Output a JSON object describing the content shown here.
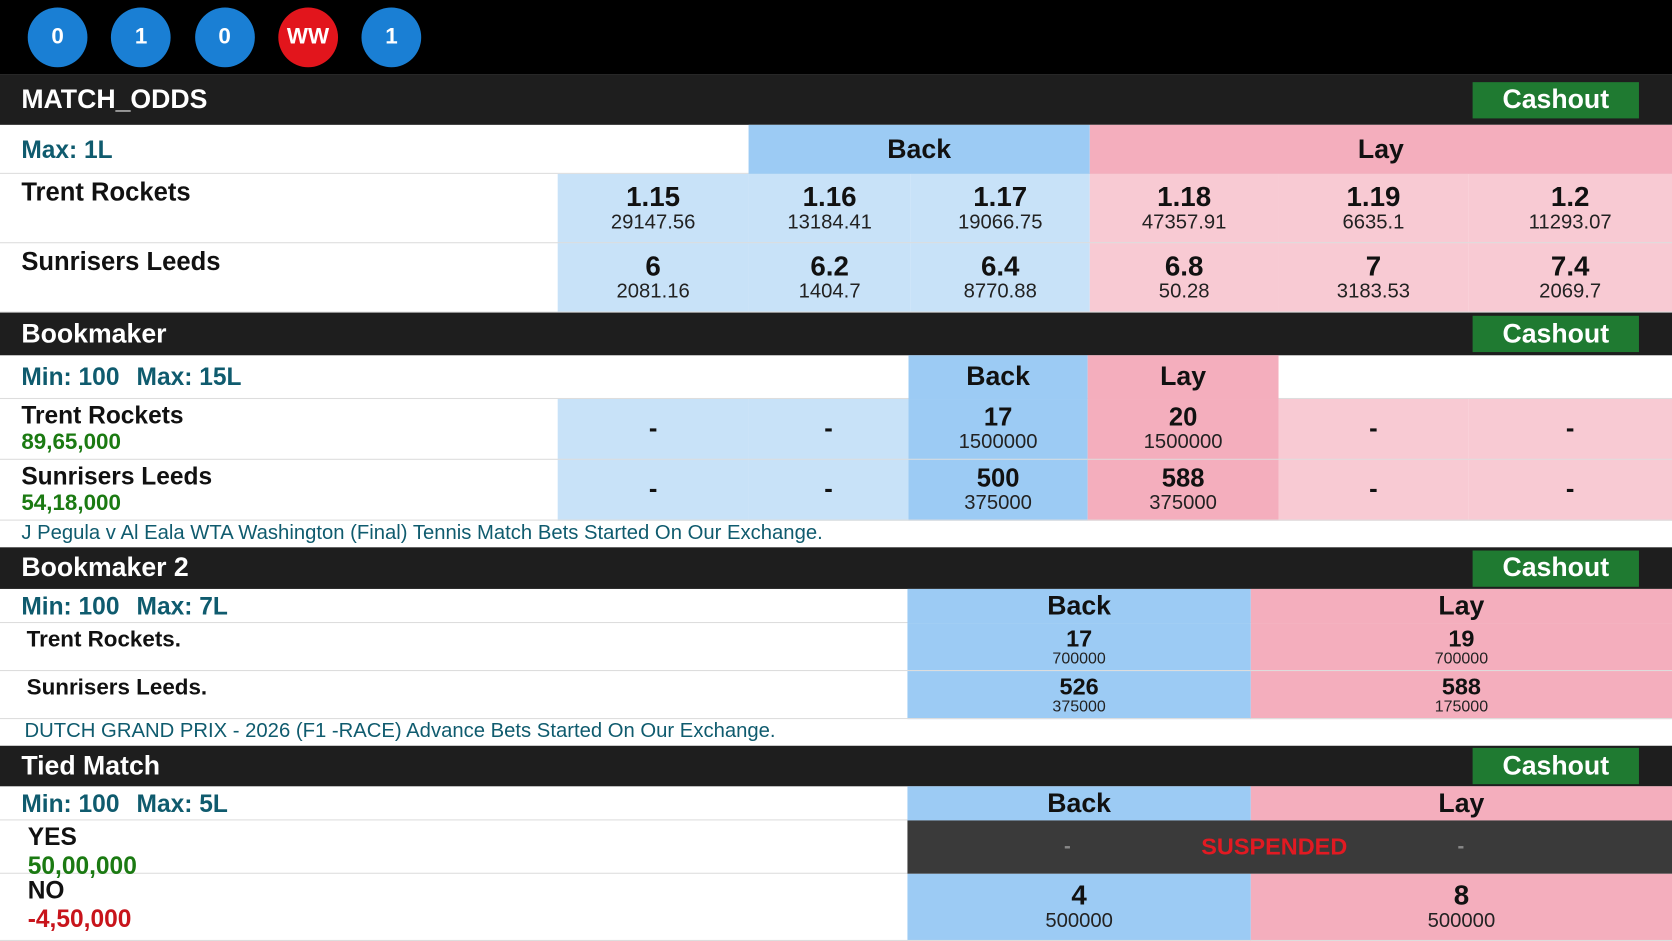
{
  "balls": [
    "0",
    "1",
    "0",
    "WW",
    "1"
  ],
  "match_odds": {
    "title": "MATCH_ODDS",
    "cashout": "Cashout",
    "max": "Max: 1L",
    "back": "Back",
    "lay": "Lay",
    "rows": [
      {
        "name": "Trent Rockets",
        "odds": [
          {
            "price": "1.15",
            "size": "29147.56"
          },
          {
            "price": "1.16",
            "size": "13184.41"
          },
          {
            "price": "1.17",
            "size": "19066.75"
          },
          {
            "price": "1.18",
            "size": "47357.91"
          },
          {
            "price": "1.19",
            "size": "6635.1"
          },
          {
            "price": "1.2",
            "size": "11293.07"
          }
        ]
      },
      {
        "name": "Sunrisers Leeds",
        "odds": [
          {
            "price": "6",
            "size": "2081.16"
          },
          {
            "price": "6.2",
            "size": "1404.7"
          },
          {
            "price": "6.4",
            "size": "8770.88"
          },
          {
            "price": "6.8",
            "size": "50.28"
          },
          {
            "price": "7",
            "size": "3183.53"
          },
          {
            "price": "7.4",
            "size": "2069.7"
          }
        ]
      }
    ]
  },
  "bookmaker": {
    "title": "Bookmaker",
    "cashout": "Cashout",
    "min": "Min: 100",
    "max": "Max: 15L",
    "back": "Back",
    "lay": "Lay",
    "rows": [
      {
        "name": "Trent Rockets",
        "position": "89,65,000",
        "cells": [
          {
            "price": "-"
          },
          {
            "price": "-"
          },
          {
            "price": "17",
            "size": "1500000"
          },
          {
            "price": "20",
            "size": "1500000"
          },
          {
            "price": "-"
          },
          {
            "price": "-"
          }
        ]
      },
      {
        "name": "Sunrisers Leeds",
        "position": "54,18,000",
        "cells": [
          {
            "price": "-"
          },
          {
            "price": "-"
          },
          {
            "price": "500",
            "size": "375000"
          },
          {
            "price": "588",
            "size": "375000"
          },
          {
            "price": "-"
          },
          {
            "price": "-"
          }
        ]
      }
    ]
  },
  "news1": "J Pegula v Al Eala WTA Washington (Final) Tennis Match Bets Started On Our Exchange.",
  "bookmaker2": {
    "title": "Bookmaker 2",
    "cashout": "Cashout",
    "min": "Min: 100",
    "max": "Max: 7L",
    "back": "Back",
    "lay": "Lay",
    "rows": [
      {
        "name": "Trent Rockets.",
        "back": {
          "price": "17",
          "size": "700000"
        },
        "lay": {
          "price": "19",
          "size": "700000"
        }
      },
      {
        "name": "Sunrisers Leeds.",
        "back": {
          "price": "526",
          "size": "375000"
        },
        "lay": {
          "price": "588",
          "size": "175000"
        }
      }
    ]
  },
  "news2": "DUTCH GRAND PRIX - 2026 (F1 -RACE) Advance Bets Started On Our Exchange.",
  "tied": {
    "title": "Tied Match",
    "cashout": "Cashout",
    "min": "Min: 100",
    "max": "Max: 5L",
    "back": "Back",
    "lay": "Lay",
    "rows": [
      {
        "name": "YES",
        "position": "50,00,000",
        "back": "-",
        "lay": "-",
        "status": "SUSPENDED"
      },
      {
        "name": "NO",
        "position": "-4,50,000",
        "back": {
          "price": "4",
          "size": "500000"
        },
        "lay": {
          "price": "8",
          "size": "500000"
        }
      }
    ]
  }
}
